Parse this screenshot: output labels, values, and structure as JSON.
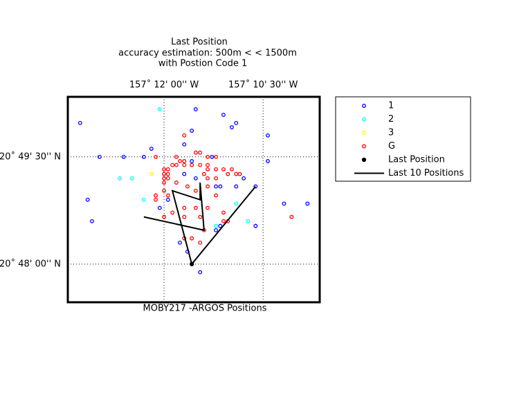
{
  "chart_data": {
    "type": "scatter",
    "title": [
      "Last Position",
      "accuracy estimation: 500m < < 1500m",
      "with Postion Code 1"
    ],
    "x_label": "MOBY217 -ARGOS Positions",
    "xlim": [
      -157.2243,
      -157.1607
    ],
    "ylim": [
      20.7911,
      20.839
    ],
    "xticks": [
      {
        "value": -157.2,
        "label": "157˚ 12' 00'' W"
      },
      {
        "value": -157.175,
        "label": "157˚ 10' 30'' W"
      }
    ],
    "yticks": [
      {
        "value": 20.825,
        "label": "20˚ 49' 30'' N"
      },
      {
        "value": 20.8,
        "label": "20˚ 48' 00'' N"
      }
    ],
    "grid": true,
    "legend": "outside right",
    "series": [
      {
        "name": "1",
        "color": "#0000ff",
        "style": "marker",
        "x": [
          -157.2212,
          -157.192,
          -157.185,
          -157.1818,
          -157.1829,
          -157.193,
          -157.1738,
          -157.1949,
          -157.2032,
          -157.2163,
          -157.2102,
          -157.2051,
          -157.193,
          -157.1879,
          -157.1738,
          -157.192,
          -157.1949,
          -157.1869,
          -157.1858,
          -157.1818,
          -157.1769,
          -157.1799,
          -157.2193,
          -157.2011,
          -157.2182,
          -157.1697,
          -157.1638,
          -157.1858,
          -157.1869,
          -157.1769,
          -157.196,
          -157.1941,
          -157.1909,
          -157.199
        ],
        "values": [
          20.8329,
          20.8361,
          20.8348,
          20.8329,
          20.8319,
          20.8311,
          20.83,
          20.8279,
          20.8269,
          20.825,
          20.825,
          20.825,
          20.824,
          20.825,
          20.824,
          20.82,
          20.821,
          20.8181,
          20.8181,
          20.8181,
          20.8181,
          20.82,
          20.815,
          20.8131,
          20.81,
          20.8141,
          20.8141,
          20.8089,
          20.8079,
          20.8089,
          20.805,
          20.8029,
          20.7981,
          20.815
        ]
      },
      {
        "name": "2",
        "color": "#00ffff",
        "style": "marker",
        "x": [
          -157.2011,
          -157.2112,
          -157.2081,
          -157.2051,
          -157.1818,
          -157.1788,
          -157.1869
        ],
        "values": [
          20.8361,
          20.82,
          20.82,
          20.815,
          20.8141,
          20.81,
          20.8089
        ]
      },
      {
        "name": "3",
        "color": "#ffff00",
        "style": "marker",
        "x": [
          -157.2032
        ],
        "values": [
          20.821
        ]
      },
      {
        "name": "G",
        "color": "#ff0000",
        "style": "marker",
        "x": [
          -157.2021,
          -157.1969,
          -157.196,
          -157.1949,
          -157.192,
          -157.1909,
          -157.189,
          -157.1869,
          -157.1979,
          -157.1969,
          -157.1949,
          -157.193,
          -157.1909,
          -157.189,
          -157.2,
          -157.199,
          -157.189,
          -157.1869,
          -157.185,
          -157.1829,
          -157.2,
          -157.199,
          -157.1899,
          -157.1839,
          -157.1818,
          -157.1809,
          -157.2,
          -157.199,
          -157.189,
          -157.1869,
          -157.2,
          -157.1969,
          -157.1941,
          -157.189,
          -157.2,
          -157.192,
          -157.2021,
          -157.1869,
          -157.199,
          -157.2021,
          -157.1949,
          -157.192,
          -157.189,
          -157.1979,
          -157.185,
          -157.2,
          -157.1949,
          -157.1909,
          -157.185,
          -157.1839,
          -157.1899,
          -157.1949,
          -157.193,
          -157.1909,
          -157.1949,
          -157.1678
        ],
        "values": [
          20.825,
          20.825,
          20.824,
          20.824,
          20.826,
          20.826,
          20.825,
          20.825,
          20.8231,
          20.8231,
          20.8231,
          20.8231,
          20.8231,
          20.8231,
          20.8221,
          20.8221,
          20.8221,
          20.8221,
          20.8221,
          20.8221,
          20.821,
          20.821,
          20.821,
          20.821,
          20.821,
          20.821,
          20.82,
          20.82,
          20.82,
          20.82,
          20.819,
          20.819,
          20.8181,
          20.8181,
          20.8171,
          20.8171,
          20.816,
          20.816,
          20.816,
          20.815,
          20.8131,
          20.8131,
          20.8131,
          20.812,
          20.812,
          20.811,
          20.811,
          20.811,
          20.81,
          20.81,
          20.8079,
          20.806,
          20.806,
          20.805,
          20.83,
          20.811
        ]
      },
      {
        "name": "Last Position",
        "color": "#000000",
        "style": "dot",
        "x": [
          -157.193
        ],
        "values": [
          20.8
        ]
      },
      {
        "name": "Last 10 Positions",
        "color": "#000000",
        "style": "line",
        "x": [
          -157.2051,
          -157.1899,
          -157.1909,
          -157.1909,
          -157.1979,
          -157.193,
          -157.1769
        ],
        "values": [
          20.811,
          20.8079,
          20.819,
          20.815,
          20.8171,
          20.8,
          20.8181
        ]
      }
    ]
  }
}
